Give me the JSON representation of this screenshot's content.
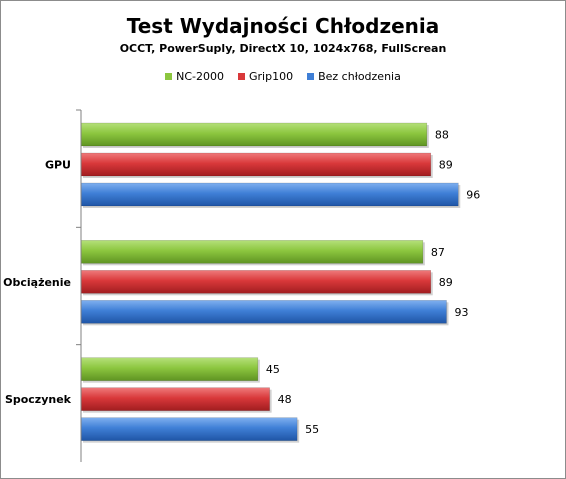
{
  "chart_data": {
    "type": "bar",
    "orientation": "horizontal",
    "title": "Test Wydajności Chłodzenia",
    "subtitle": "OCCT, PowerSuply, DirectX 10, 1024x768, FullScrean",
    "categories": [
      "GPU",
      "Obciążenie",
      "Spoczynek"
    ],
    "series": [
      {
        "name": "NC-2000",
        "color": "#8cc63f",
        "values": [
          88,
          87,
          45
        ]
      },
      {
        "name": "Grip100",
        "color": "#d9383a",
        "values": [
          89,
          89,
          48
        ]
      },
      {
        "name": "Bez chłodzenia",
        "color": "#3f7fd6",
        "values": [
          96,
          93,
          55
        ]
      }
    ],
    "legend_position": "top",
    "data_labels": true,
    "grid": false,
    "xlim": [
      0,
      100
    ]
  }
}
